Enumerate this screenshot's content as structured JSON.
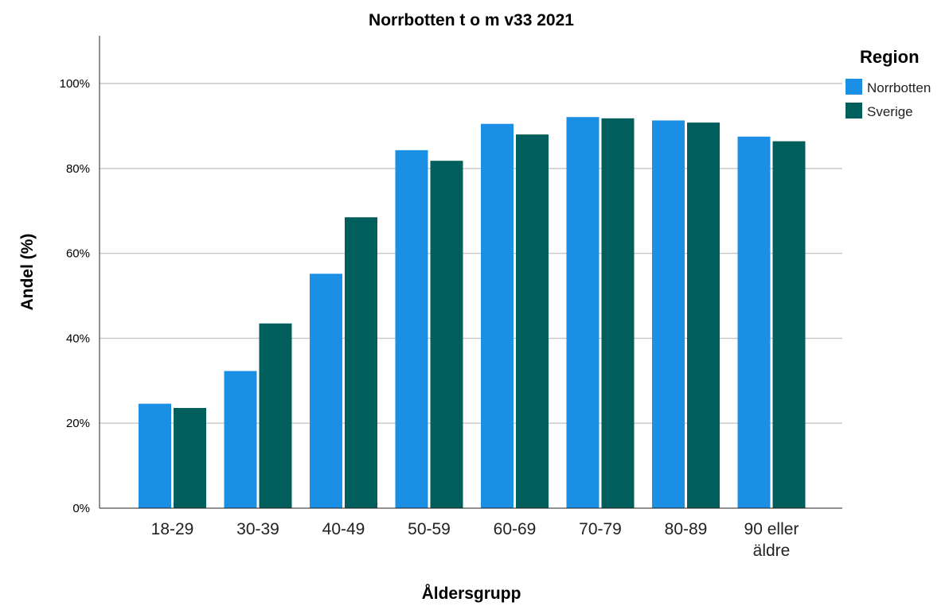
{
  "chart_data": {
    "type": "bar",
    "title": "Norrbotten t o m v33 2021",
    "xlabel": "Åldersgrupp",
    "ylabel": "Andel (%)",
    "ylim": [
      0,
      110
    ],
    "yticks": [
      0,
      20,
      40,
      60,
      80,
      100
    ],
    "ytick_labels": [
      "0%",
      "20%",
      "40%",
      "60%",
      "80%",
      "100%"
    ],
    "grid": true,
    "categories": [
      "18-29",
      "30-39",
      "40-49",
      "50-59",
      "60-69",
      "70-79",
      "80-89",
      "90 eller äldre"
    ],
    "category_lines": [
      [
        "18-29"
      ],
      [
        "30-39"
      ],
      [
        "40-49"
      ],
      [
        "50-59"
      ],
      [
        "60-69"
      ],
      [
        "70-79"
      ],
      [
        "80-89"
      ],
      [
        "90 eller",
        "äldre"
      ]
    ],
    "legend": {
      "title": "Region",
      "position": "top-right"
    },
    "series": [
      {
        "name": "Norrbotten",
        "color": "#1a8fe3",
        "values": [
          24.6,
          32.3,
          55.2,
          84.3,
          90.5,
          92.1,
          91.3,
          87.5
        ]
      },
      {
        "name": "Sverige",
        "color": "#005f5c",
        "values": [
          23.6,
          43.5,
          68.5,
          81.8,
          88.0,
          91.8,
          90.8,
          86.4
        ]
      }
    ]
  }
}
